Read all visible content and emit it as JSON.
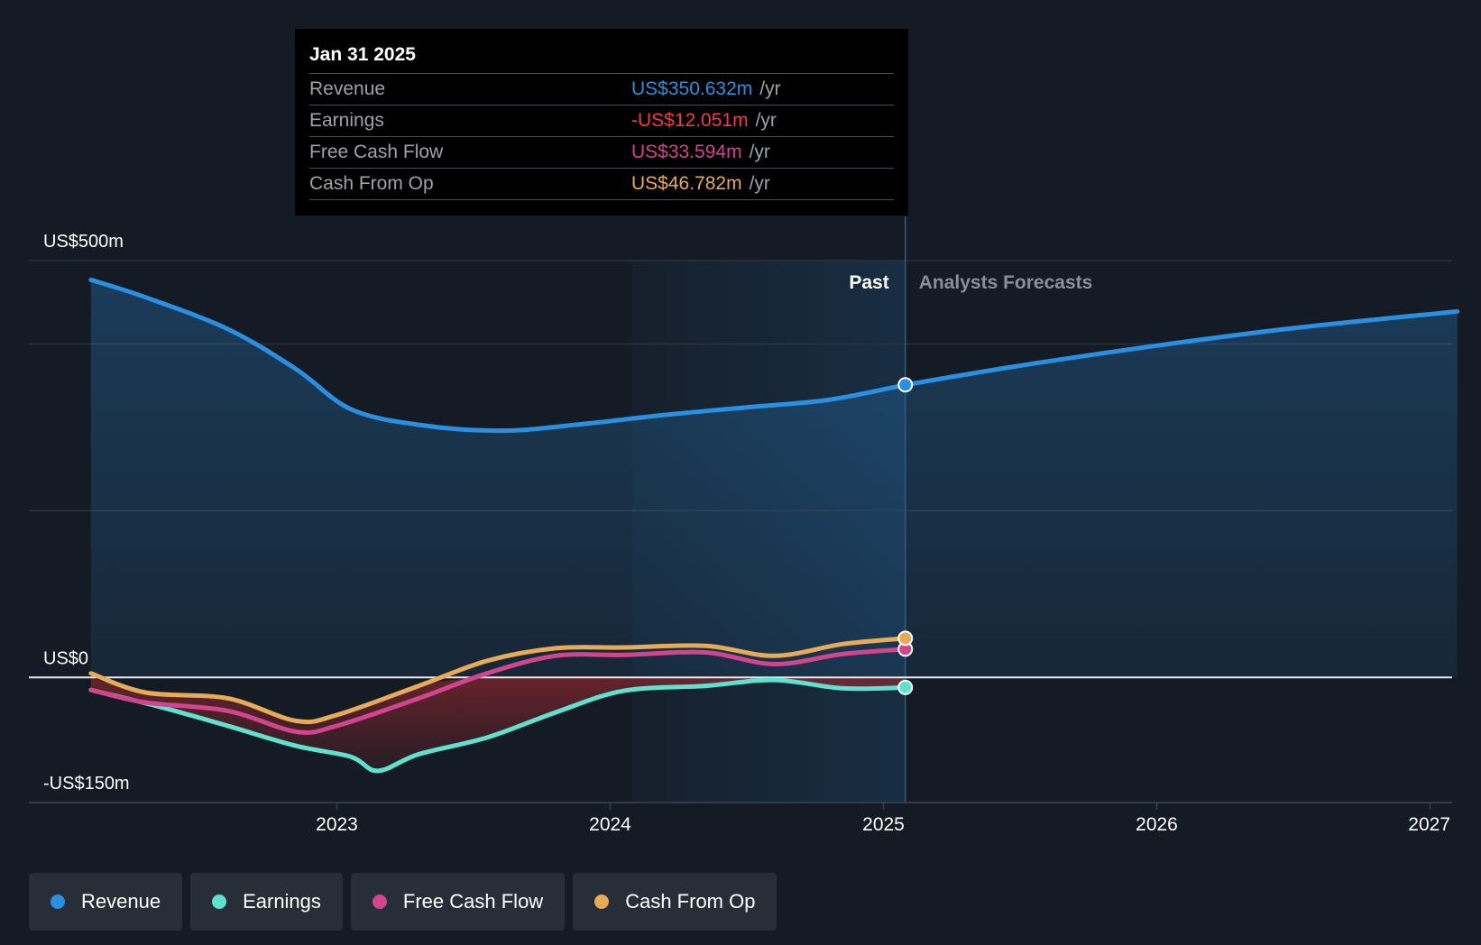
{
  "tooltip": {
    "date": "Jan 31 2025",
    "rows": [
      {
        "label": "Revenue",
        "value": "US$350.632m",
        "unit": "/yr",
        "color": "#2a8fe0"
      },
      {
        "label": "Earnings",
        "value": "-US$12.051m",
        "unit": "/yr",
        "color": "#ef3b4a"
      },
      {
        "label": "Free Cash Flow",
        "value": "US$33.594m",
        "unit": "/yr",
        "color": "#d0458d"
      },
      {
        "label": "Cash From Op",
        "value": "US$46.782m",
        "unit": "/yr",
        "color": "#e6aa58"
      }
    ]
  },
  "legend": [
    {
      "label": "Revenue",
      "color": "#2a8fe0"
    },
    {
      "label": "Earnings",
      "color": "#5ee2cf"
    },
    {
      "label": "Free Cash Flow",
      "color": "#d0458d"
    },
    {
      "label": "Cash From Op",
      "color": "#e6aa58"
    }
  ],
  "chart_data": {
    "type": "line",
    "title": "",
    "xlabel": "",
    "ylabel": "",
    "x_range": [
      2022.1,
      2027.0
    ],
    "ylim": [
      -150,
      500
    ],
    "y_tick_labels": [
      {
        "value": 500,
        "label": "US$500m"
      },
      {
        "value": 0,
        "label": "US$0"
      },
      {
        "value": -150,
        "label": "-US$150m"
      }
    ],
    "y_gridlines": [
      500,
      400,
      200,
      0,
      -150
    ],
    "x_ticks": [
      {
        "value": 2023,
        "label": "2023"
      },
      {
        "value": 2024,
        "label": "2024"
      },
      {
        "value": 2025,
        "label": "2025"
      },
      {
        "value": 2026,
        "label": "2026"
      },
      {
        "value": 2027,
        "label": "2027"
      }
    ],
    "region_labels": {
      "past": "Past",
      "forecast": "Analysts Forecasts"
    },
    "highlight_start": 2024.08,
    "divider_x": 2025.08,
    "series": [
      {
        "name": "Revenue",
        "color": "#2a8fe0",
        "points": [
          [
            2022.1,
            477
          ],
          [
            2022.3,
            456
          ],
          [
            2022.6,
            418
          ],
          [
            2022.85,
            370
          ],
          [
            2023.05,
            322
          ],
          [
            2023.3,
            303
          ],
          [
            2023.6,
            296
          ],
          [
            2023.9,
            304
          ],
          [
            2024.2,
            315
          ],
          [
            2024.5,
            324
          ],
          [
            2024.8,
            333
          ],
          [
            2025.08,
            351
          ]
        ],
        "forecast": [
          [
            2025.08,
            351
          ],
          [
            2025.5,
            374
          ],
          [
            2026.0,
            398
          ],
          [
            2026.5,
            419
          ],
          [
            2027.1,
            439
          ]
        ]
      },
      {
        "name": "Earnings",
        "color": "#5ee2cf",
        "points": [
          [
            2022.1,
            -15
          ],
          [
            2022.35,
            -35
          ],
          [
            2022.6,
            -58
          ],
          [
            2022.85,
            -82
          ],
          [
            2023.05,
            -95
          ],
          [
            2023.15,
            -112
          ],
          [
            2023.3,
            -92
          ],
          [
            2023.55,
            -72
          ],
          [
            2023.8,
            -42
          ],
          [
            2024.05,
            -16
          ],
          [
            2024.35,
            -10
          ],
          [
            2024.6,
            -3
          ],
          [
            2024.85,
            -13
          ],
          [
            2025.08,
            -12
          ]
        ]
      },
      {
        "name": "Free Cash Flow",
        "color": "#d0458d",
        "points": [
          [
            2022.1,
            -15
          ],
          [
            2022.3,
            -30
          ],
          [
            2022.6,
            -40
          ],
          [
            2022.85,
            -65
          ],
          [
            2023.0,
            -58
          ],
          [
            2023.3,
            -25
          ],
          [
            2023.55,
            5
          ],
          [
            2023.8,
            26
          ],
          [
            2024.05,
            27
          ],
          [
            2024.35,
            30
          ],
          [
            2024.6,
            16
          ],
          [
            2024.85,
            28
          ],
          [
            2025.08,
            34
          ]
        ]
      },
      {
        "name": "Cash From Op",
        "color": "#e6aa58",
        "points": [
          [
            2022.1,
            5
          ],
          [
            2022.3,
            -18
          ],
          [
            2022.6,
            -25
          ],
          [
            2022.85,
            -52
          ],
          [
            2023.0,
            -45
          ],
          [
            2023.3,
            -10
          ],
          [
            2023.55,
            20
          ],
          [
            2023.8,
            35
          ],
          [
            2024.05,
            36
          ],
          [
            2024.35,
            38
          ],
          [
            2024.6,
            26
          ],
          [
            2024.85,
            40
          ],
          [
            2025.08,
            47
          ]
        ]
      }
    ]
  }
}
